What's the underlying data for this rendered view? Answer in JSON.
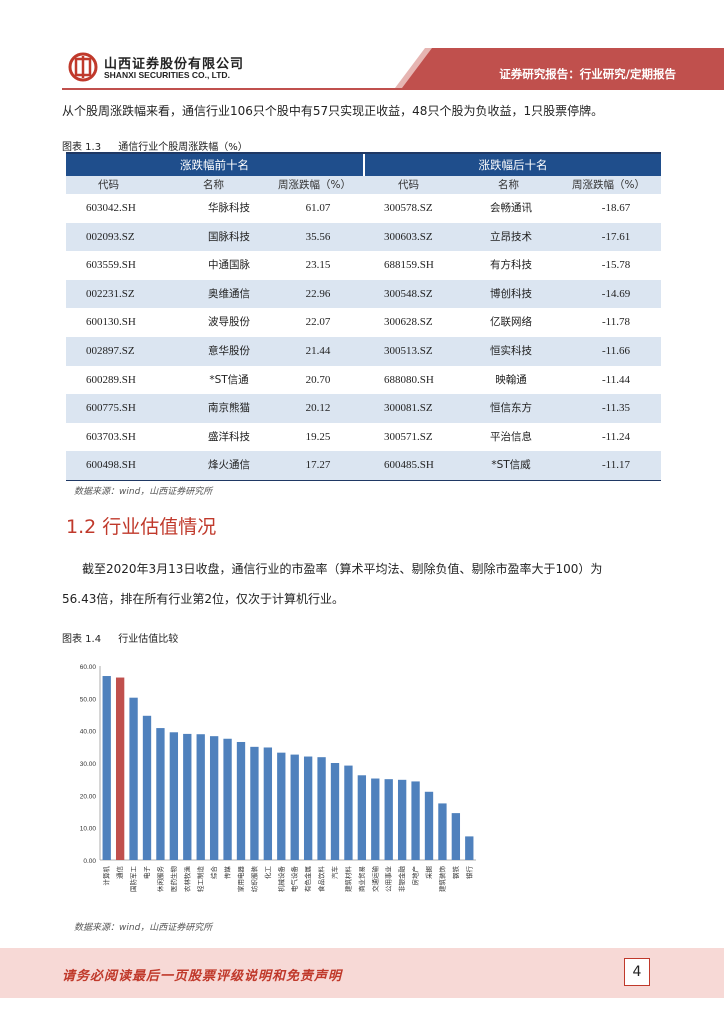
{
  "header": {
    "company_cn": "山西证券股份有限公司",
    "company_en": "SHANXI SECURITIES CO., LTD.",
    "report_type": "证券研究报告：行业研究/定期报告"
  },
  "intro_text": "从个股周涨跌幅来看，通信行业106只个股中有57只实现正收益，48只个股为负收益，1只股票停牌。",
  "table_caption": {
    "num": "图表 1.3",
    "title": "通信行业个股周涨跌幅（%）"
  },
  "table": {
    "left_title": "涨跌幅前十名",
    "right_title": "涨跌幅后十名",
    "col_code": "代码",
    "col_name": "名称",
    "col_change": "周涨跌幅（%）",
    "rows": [
      {
        "c1": "603042.SH",
        "n1": "华脉科技",
        "v1": "61.07",
        "c2": "300578.SZ",
        "n2": "会畅通讯",
        "v2": "-18.67"
      },
      {
        "c1": "002093.SZ",
        "n1": "国脉科技",
        "v1": "35.56",
        "c2": "300603.SZ",
        "n2": "立昂技术",
        "v2": "-17.61"
      },
      {
        "c1": "603559.SH",
        "n1": "中通国脉",
        "v1": "23.15",
        "c2": "688159.SH",
        "n2": "有方科技",
        "v2": "-15.78"
      },
      {
        "c1": "002231.SZ",
        "n1": "奥维通信",
        "v1": "22.96",
        "c2": "300548.SZ",
        "n2": "博创科技",
        "v2": "-14.69"
      },
      {
        "c1": "600130.SH",
        "n1": "波导股份",
        "v1": "22.07",
        "c2": "300628.SZ",
        "n2": "亿联网络",
        "v2": "-11.78"
      },
      {
        "c1": "002897.SZ",
        "n1": "意华股份",
        "v1": "21.44",
        "c2": "300513.SZ",
        "n2": "恒实科技",
        "v2": "-11.66"
      },
      {
        "c1": "600289.SH",
        "n1": "*ST信通",
        "v1": "20.70",
        "c2": "688080.SH",
        "n2": "映翰通",
        "v2": "-11.44"
      },
      {
        "c1": "600775.SH",
        "n1": "南京熊猫",
        "v1": "20.12",
        "c2": "300081.SZ",
        "n2": "恒信东方",
        "v2": "-11.35"
      },
      {
        "c1": "603703.SH",
        "n1": "盛洋科技",
        "v1": "19.25",
        "c2": "300571.SZ",
        "n2": "平治信息",
        "v2": "-11.24"
      },
      {
        "c1": "600498.SH",
        "n1": "烽火通信",
        "v1": "17.27",
        "c2": "600485.SH",
        "n2": "*ST信威",
        "v2": "-11.17"
      }
    ]
  },
  "source_label": "数据来源：wind，山西证券研究所",
  "section_title": "1.2 行业估值情况",
  "valuation_text_1": "截至2020年3月13日收盘，通信行业的市盈率（算术平均法、剔除负值、剔除市盈率大于100）为",
  "valuation_text_2": "56.43倍，排在所有行业第2位，仅次于计算机行业。",
  "chart_caption": {
    "num": "图表 1.4",
    "title": "行业估值比较"
  },
  "chart_data": {
    "type": "bar",
    "title": "",
    "xlabel": "",
    "ylabel": "",
    "ylim": [
      0,
      60
    ],
    "yticks": [
      "0.00",
      "10.00",
      "20.00",
      "30.00",
      "40.00",
      "50.00",
      "60.00"
    ],
    "categories": [
      "计算机",
      "通信",
      "国防军工",
      "电子",
      "休闲服务",
      "医药生物",
      "农林牧渔",
      "轻工制造",
      "综合",
      "传媒",
      "家用电器",
      "纺织服装",
      "化工",
      "机械设备",
      "电气设备",
      "有色金属",
      "食品饮料",
      "汽车",
      "建筑材料",
      "商业贸易",
      "交通运输",
      "公用事业",
      "非银金融",
      "房地产",
      "采掘",
      "建筑装饰",
      "钢铁",
      "银行"
    ],
    "values": [
      56.9,
      56.43,
      50.2,
      44.6,
      40.8,
      39.5,
      39.0,
      38.9,
      38.3,
      37.5,
      36.5,
      35.0,
      34.8,
      33.2,
      32.6,
      32.0,
      31.8,
      30.0,
      29.2,
      26.2,
      25.2,
      25.0,
      24.8,
      24.3,
      21.1,
      17.5,
      14.5,
      7.3
    ],
    "highlight_index": 1,
    "bar_color": "#4f81bd",
    "highlight_color": "#c0504d"
  },
  "chart_source_label": "数据来源：wind，山西证券研究所",
  "footer": {
    "disclaimer": "请务必阅读最后一页股票评级说明和免责声明",
    "page_number": "4"
  },
  "colors": {
    "brand_red": "#c0392b",
    "table_header": "#1f4e8c",
    "row_alt": "#dbe5f1"
  }
}
